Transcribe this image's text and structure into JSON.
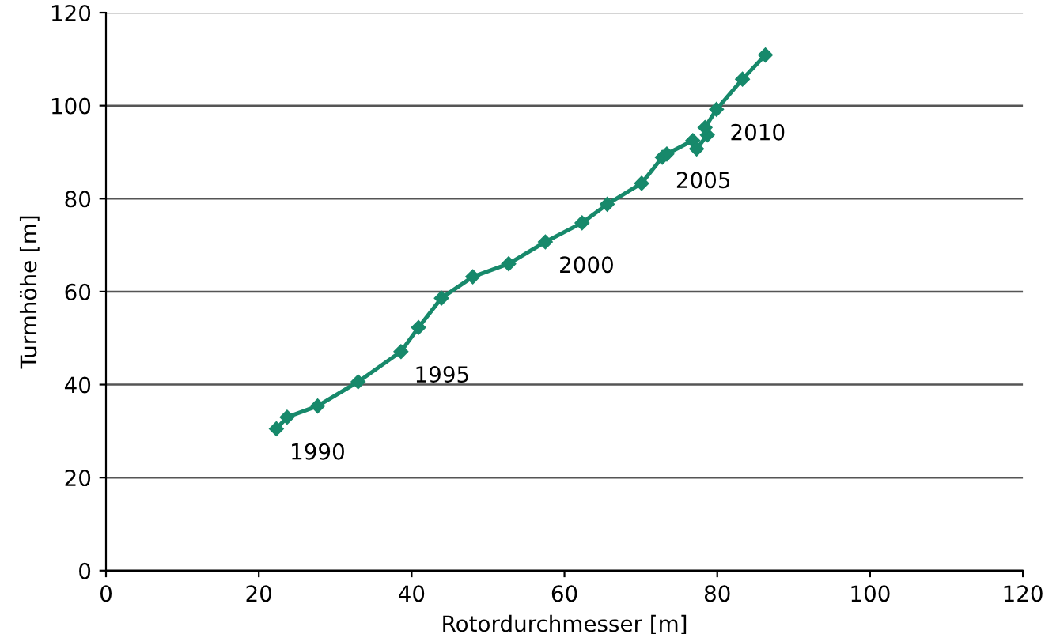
{
  "chart_data": {
    "type": "line",
    "xlabel": "Rotordurchmesser [m]",
    "ylabel": "Turmhöhe [m]",
    "series": [
      {
        "color": "#17896b",
        "x": [
          22.3,
          23.7,
          27.7,
          33.0,
          38.6,
          40.9,
          43.9,
          48.0,
          52.7,
          57.5,
          62.3,
          65.6,
          70.1,
          72.8,
          73.4,
          76.8,
          77.3,
          78.7,
          78.4,
          79.9,
          83.3,
          86.3
        ],
        "values": [
          30.5,
          33.0,
          35.4,
          40.6,
          47.1,
          52.3,
          58.6,
          63.2,
          66.0,
          70.7,
          74.8,
          78.8,
          83.3,
          88.9,
          89.6,
          92.5,
          90.7,
          93.7,
          95.3,
          99.2,
          105.7,
          110.9
        ]
      }
    ],
    "annotations": [
      {
        "text": "1990",
        "x": 22.3,
        "y": 30.5
      },
      {
        "text": "1995",
        "x": 38.6,
        "y": 47.1
      },
      {
        "text": "2000",
        "x": 57.5,
        "y": 70.7
      },
      {
        "text": "2005",
        "x": 72.8,
        "y": 88.9
      },
      {
        "text": "2010",
        "x": 79.9,
        "y": 99.2
      }
    ],
    "xlim": [
      0,
      120
    ],
    "xticks": [
      0,
      20,
      40,
      60,
      80,
      100,
      120
    ],
    "ylim": [
      0,
      120
    ],
    "yticks": [
      0,
      20,
      40,
      60,
      80,
      100,
      120
    ],
    "grid": "y",
    "marker": "diamond",
    "line_style": "solid",
    "legend": false
  }
}
